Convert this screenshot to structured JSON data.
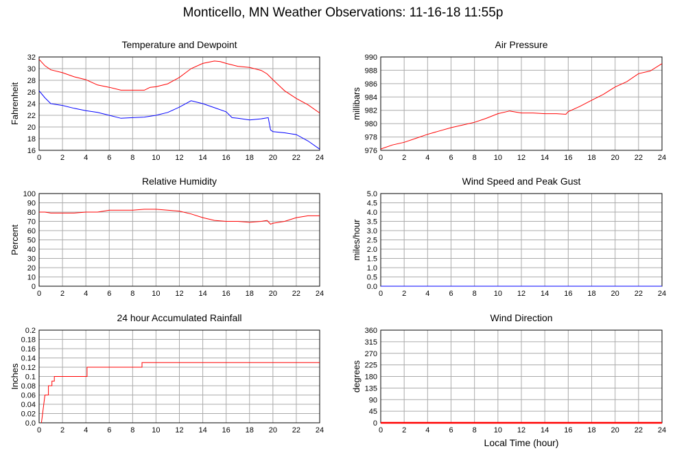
{
  "page": {
    "title": "Monticello, MN Weather Observations: 11-16-18 11:55p",
    "xlabel_bottom": "Local Time (hour)"
  },
  "chart_data": [
    {
      "id": "temp",
      "type": "line",
      "title": "Temperature and Dewpoint",
      "ylabel": "Fahrenheit",
      "xlim": [
        0,
        24
      ],
      "ylim": [
        16,
        32
      ],
      "yticks": [
        "16",
        "18",
        "20",
        "22",
        "24",
        "26",
        "28",
        "30",
        "32"
      ],
      "xticks": [
        "0",
        "2",
        "4",
        "6",
        "8",
        "10",
        "12",
        "14",
        "16",
        "18",
        "20",
        "22",
        "24"
      ],
      "grid": true,
      "series": [
        {
          "color": "#ff0000",
          "x": [
            0,
            0.5,
            1,
            2,
            3,
            4,
            5,
            6,
            7,
            8,
            9,
            9.5,
            10,
            11,
            12,
            13,
            14,
            15,
            15.5,
            16,
            17,
            18,
            19,
            19.5,
            20,
            21,
            22,
            23,
            24
          ],
          "y": [
            31.6,
            30.5,
            29.8,
            29.3,
            28.6,
            28.1,
            27.2,
            26.8,
            26.3,
            26.3,
            26.3,
            26.8,
            26.9,
            27.4,
            28.5,
            30.0,
            30.9,
            31.3,
            31.2,
            30.9,
            30.4,
            30.2,
            29.7,
            29.1,
            28.1,
            26.2,
            24.9,
            23.8,
            22.4
          ]
        },
        {
          "color": "#0000ff",
          "x": [
            0,
            0.5,
            1,
            2,
            3,
            4,
            5,
            6,
            7,
            8,
            9,
            10,
            11,
            12,
            13,
            14,
            15,
            16,
            16.5,
            17,
            18,
            19,
            19.6,
            19.8,
            20,
            21,
            22,
            23,
            24
          ],
          "y": [
            26.2,
            25.0,
            24.0,
            23.7,
            23.2,
            22.8,
            22.5,
            22.0,
            21.5,
            21.6,
            21.7,
            22.0,
            22.5,
            23.4,
            24.5,
            24.0,
            23.3,
            22.6,
            21.6,
            21.5,
            21.2,
            21.4,
            21.6,
            19.5,
            19.2,
            19.0,
            18.7,
            17.6,
            16.2
          ]
        }
      ]
    },
    {
      "id": "pressure",
      "type": "line",
      "title": "Air Pressure",
      "ylabel": "millibars",
      "xlim": [
        0,
        24
      ],
      "ylim": [
        976,
        990
      ],
      "yticks": [
        "976",
        "978",
        "980",
        "982",
        "984",
        "986",
        "988",
        "990"
      ],
      "xticks": [
        "0",
        "2",
        "4",
        "6",
        "8",
        "10",
        "12",
        "14",
        "16",
        "18",
        "20",
        "22",
        "24"
      ],
      "grid": true,
      "series": [
        {
          "color": "#ff0000",
          "x": [
            0,
            1,
            2,
            3,
            4,
            5,
            6,
            7,
            8,
            9,
            10,
            11,
            12,
            13,
            14,
            15,
            15.8,
            16,
            17,
            18,
            19,
            20,
            21,
            22,
            23,
            24
          ],
          "y": [
            976.2,
            976.8,
            977.2,
            977.8,
            978.4,
            978.9,
            979.4,
            979.8,
            980.2,
            980.8,
            981.5,
            981.9,
            981.6,
            981.6,
            981.5,
            981.5,
            981.4,
            981.8,
            982.6,
            983.5,
            984.4,
            985.5,
            986.3,
            987.5,
            987.9,
            989.0
          ]
        }
      ]
    },
    {
      "id": "humidity",
      "type": "line",
      "title": "Relative Humidity",
      "ylabel": "Percent",
      "xlim": [
        0,
        24
      ],
      "ylim": [
        0,
        100
      ],
      "yticks": [
        "0",
        "10",
        "20",
        "30",
        "40",
        "50",
        "60",
        "70",
        "80",
        "90",
        "100"
      ],
      "xticks": [
        "0",
        "2",
        "4",
        "6",
        "8",
        "10",
        "12",
        "14",
        "16",
        "18",
        "20",
        "22",
        "24"
      ],
      "grid": true,
      "series": [
        {
          "color": "#ff0000",
          "x": [
            0,
            0.5,
            1,
            2,
            3,
            4,
            5,
            6,
            7,
            8,
            9,
            10,
            11,
            12,
            13,
            14,
            15,
            16,
            17,
            18,
            19,
            19.5,
            19.8,
            20,
            21,
            22,
            23,
            24
          ],
          "y": [
            80,
            80,
            79,
            79,
            79,
            80,
            80,
            82,
            82,
            82,
            83,
            83,
            82,
            81,
            78,
            74,
            71,
            70,
            70,
            69,
            70,
            71,
            67,
            68,
            70,
            74,
            76,
            76
          ]
        }
      ]
    },
    {
      "id": "wind",
      "type": "line",
      "title": "Wind Speed and Peak Gust",
      "ylabel": "miles/hour",
      "xlim": [
        0,
        24
      ],
      "ylim": [
        0,
        5
      ],
      "yticks": [
        "0.0",
        "0.5",
        "1.0",
        "1.5",
        "2.0",
        "2.5",
        "3.0",
        "3.5",
        "4.0",
        "4.5",
        "5.0"
      ],
      "xticks": [
        "0",
        "2",
        "4",
        "6",
        "8",
        "10",
        "12",
        "14",
        "16",
        "18",
        "20",
        "22",
        "24"
      ],
      "grid": true,
      "series": [
        {
          "color": "#ff0000",
          "x": [
            0,
            24
          ],
          "y": [
            0,
            0
          ]
        },
        {
          "color": "#0000ff",
          "x": [
            0,
            24
          ],
          "y": [
            0,
            0
          ]
        }
      ]
    },
    {
      "id": "rain",
      "type": "line",
      "title": "24 hour Accumulated Rainfall",
      "ylabel": "Inches",
      "xlim": [
        0,
        24
      ],
      "ylim": [
        0,
        0.2
      ],
      "yticks": [
        "0.0",
        "0.02",
        "0.04",
        "0.06",
        "0.08",
        "0.1",
        "0.12",
        "0.14",
        "0.16",
        "0.18",
        "0.2"
      ],
      "xticks": [
        "0",
        "2",
        "4",
        "6",
        "8",
        "10",
        "12",
        "14",
        "16",
        "18",
        "20",
        "22",
        "24"
      ],
      "grid": true,
      "series": [
        {
          "color": "#ff0000",
          "x": [
            0.2,
            0.3,
            0.4,
            0.5,
            0.5,
            0.8,
            0.8,
            1.1,
            1.1,
            1.3,
            1.3,
            4.1,
            4.1,
            8.8,
            8.8,
            24
          ],
          "y": [
            0,
            0.02,
            0.04,
            0.06,
            0.06,
            0.06,
            0.08,
            0.08,
            0.09,
            0.09,
            0.1,
            0.1,
            0.12,
            0.12,
            0.13,
            0.13
          ]
        }
      ]
    },
    {
      "id": "direction",
      "type": "line",
      "title": "Wind Direction",
      "ylabel": "degrees",
      "xlim": [
        0,
        24
      ],
      "ylim": [
        0,
        360
      ],
      "yticks": [
        "0",
        "45",
        "90",
        "135",
        "180",
        "225",
        "270",
        "315",
        "360"
      ],
      "xticks": [
        "0",
        "2",
        "4",
        "6",
        "8",
        "10",
        "12",
        "14",
        "16",
        "18",
        "20",
        "22",
        "24"
      ],
      "xlabel": "Local Time (hour)",
      "grid": true,
      "series": [
        {
          "color": "#ff0000",
          "x": [
            0,
            24
          ],
          "y": [
            0,
            0
          ]
        }
      ]
    }
  ]
}
